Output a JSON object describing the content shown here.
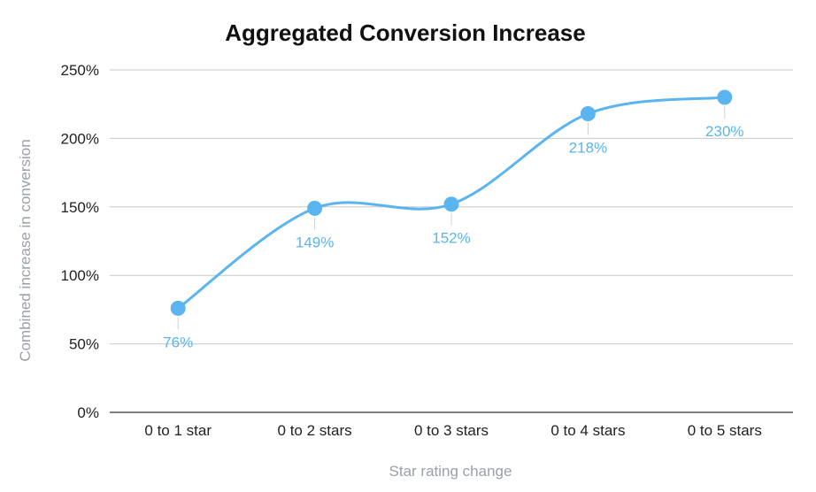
{
  "chart_data": {
    "type": "line",
    "title": "Aggregated Conversion Increase",
    "xlabel": "Star rating change",
    "ylabel": "Combined increase in conversion",
    "categories": [
      "0 to 1 star",
      "0 to 2 stars",
      "0 to 3 stars",
      "0 to 4 stars",
      "0 to 5 stars"
    ],
    "series": [
      {
        "name": "Combined increase in conversion",
        "values": [
          76,
          149,
          152,
          218,
          230
        ],
        "labels": [
          "76%",
          "149%",
          "152%",
          "218%",
          "230%"
        ],
        "color": "#5ab4f0"
      }
    ],
    "y_ticks": [
      "0%",
      "50%",
      "100%",
      "150%",
      "200%",
      "250%"
    ],
    "ylim": [
      0,
      250
    ],
    "grid": true,
    "smooth": true
  }
}
